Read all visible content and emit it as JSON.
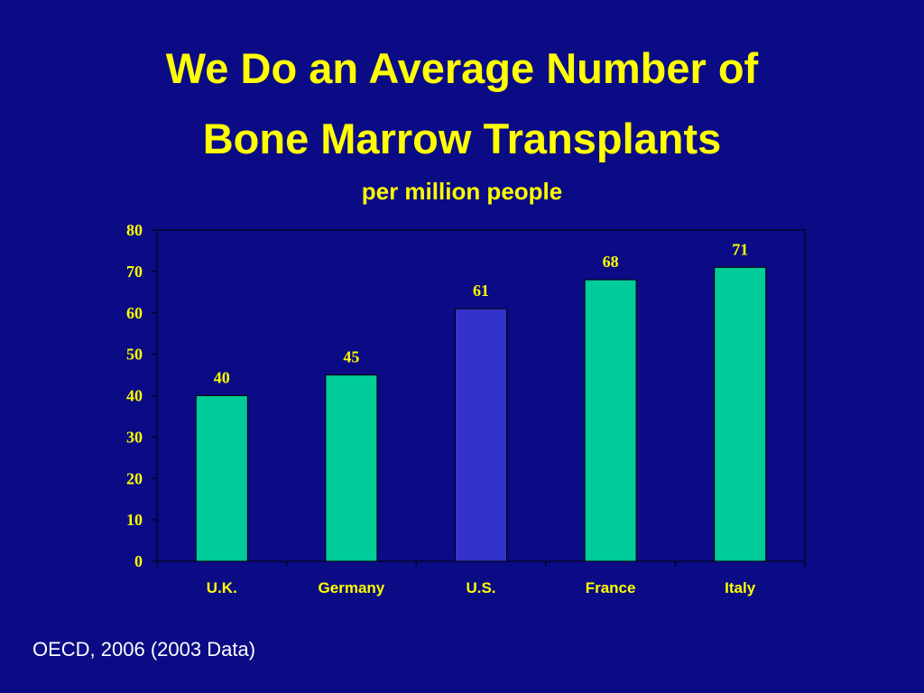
{
  "title_line1": "We Do an Average Number of",
  "title_line2": "Bone Marrow Transplants",
  "subtitle": "per million people",
  "source": "OECD, 2006 (2003 Data)",
  "colors": {
    "background": "#0b0b85",
    "text": "#ffff00",
    "bar_default": "#00cc99",
    "bar_highlight": "#3333cc",
    "axis": "#000000"
  },
  "chart_data": {
    "type": "bar",
    "categories": [
      "U.K.",
      "Germany",
      "U.S.",
      "France",
      "Italy"
    ],
    "values": [
      40,
      45,
      61,
      68,
      71
    ],
    "highlight_index": 2,
    "data_labels": [
      "40",
      "45",
      "61",
      "68",
      "71"
    ],
    "y_ticks": [
      0,
      10,
      20,
      30,
      40,
      50,
      60,
      70,
      80
    ],
    "ylim": [
      0,
      80
    ],
    "grid": false,
    "legend": false
  }
}
